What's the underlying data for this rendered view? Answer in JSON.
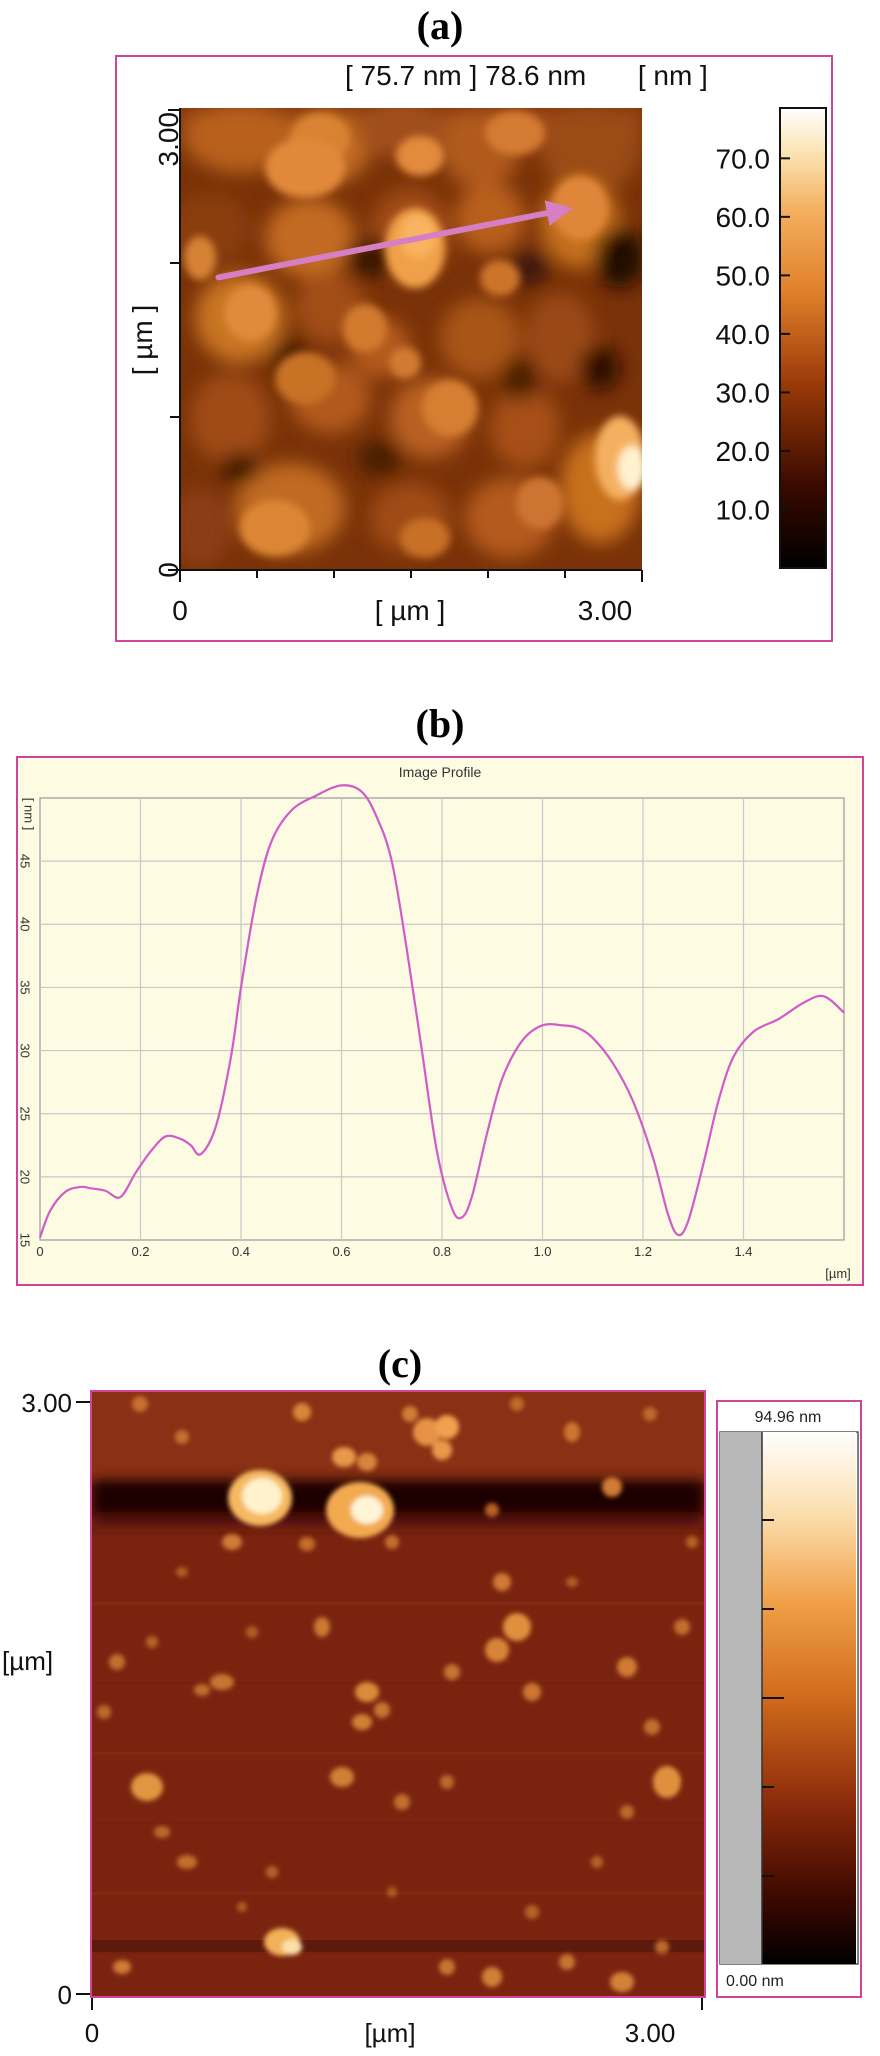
{
  "figure": {
    "panels": [
      {
        "letter": "(a)"
      },
      {
        "letter": "(b)"
      },
      {
        "letter": "(c)"
      }
    ]
  },
  "panel_a": {
    "header": {
      "bracket_value": "[ 75.7 nm ]",
      "value": "78.6 nm",
      "unit": "[ nm ]"
    },
    "x_axis": {
      "start": "0",
      "end": "3.00",
      "label": "[ µm ]"
    },
    "y_axis": {
      "start": "0",
      "end": "3.00",
      "label": "[ µm ]"
    },
    "colorbar": {
      "ticks": [
        "70.0",
        "60.0",
        "50.0",
        "40.0",
        "30.0",
        "20.0",
        "10.0"
      ],
      "tick_values": [
        70,
        60,
        50,
        40,
        30,
        20,
        10
      ],
      "max": 78.6
    },
    "colors": {
      "frame": "#d1449a",
      "arrow": "#d67fc4"
    },
    "profile_line": {
      "from": [
        0.25,
        1.9
      ],
      "to": [
        2.55,
        2.35
      ]
    }
  },
  "panel_b": {
    "title": "Image Profile",
    "colors": {
      "plot_bg": "#fdfbe2",
      "line": "#d05cc8",
      "grid": "#c8c8c8",
      "frame": "#d1449a"
    }
  },
  "panel_c": {
    "x_axis": {
      "start": "0",
      "end": "3.00",
      "label": "[µm]"
    },
    "y_axis": {
      "start": "0",
      "end": "3.00",
      "label": "[µm]"
    },
    "colorbar": {
      "top_label": "94.96 nm",
      "bottom_label": "0.00 nm"
    },
    "colors": {
      "frame": "#d1449a",
      "background": "#7a2410"
    }
  },
  "chart_data": [
    {
      "type": "heatmap",
      "panel": "a",
      "xlim": [
        0,
        3.0
      ],
      "ylim": [
        0,
        3.0
      ],
      "zlim": [
        0,
        78.6
      ],
      "xlabel": "[ µm ]",
      "ylabel": "[ µm ]",
      "colorbar_label": "[ nm ]"
    },
    {
      "type": "line",
      "panel": "b",
      "title": "Image Profile",
      "xlabel": "[µm]",
      "ylabel": "[ nm ]",
      "xlim": [
        0,
        1.6
      ],
      "ylim": [
        15,
        50
      ],
      "x_ticks": [
        "0",
        "0.2",
        "0.4",
        "0.6",
        "0.8",
        "1.0",
        "1.2",
        "1.4"
      ],
      "x_tick_values": [
        0,
        0.2,
        0.4,
        0.6,
        0.8,
        1.0,
        1.2,
        1.4
      ],
      "y_ticks": [
        "15",
        "20",
        "25",
        "30",
        "35",
        "40",
        "45"
      ],
      "y_tick_values": [
        15,
        20,
        25,
        30,
        35,
        40,
        45
      ],
      "grid": true,
      "x": [
        0,
        0.02,
        0.05,
        0.08,
        0.1,
        0.13,
        0.16,
        0.19,
        0.22,
        0.25,
        0.28,
        0.3,
        0.32,
        0.35,
        0.38,
        0.4,
        0.43,
        0.46,
        0.5,
        0.55,
        0.6,
        0.64,
        0.67,
        0.7,
        0.73,
        0.76,
        0.79,
        0.82,
        0.84,
        0.86,
        0.89,
        0.92,
        0.96,
        1.0,
        1.04,
        1.07,
        1.1,
        1.14,
        1.18,
        1.22,
        1.25,
        1.27,
        1.29,
        1.32,
        1.35,
        1.38,
        1.42,
        1.47,
        1.52,
        1.56,
        1.6
      ],
      "y": [
        15.2,
        17.3,
        18.8,
        19.2,
        19.1,
        18.9,
        18.4,
        20.3,
        22.0,
        23.2,
        23.0,
        22.5,
        21.8,
        24.0,
        29.5,
        35.0,
        42.0,
        46.5,
        49.0,
        50.2,
        51.0,
        50.5,
        48.5,
        45.0,
        38.0,
        30.0,
        22.0,
        17.5,
        16.8,
        18.5,
        23.5,
        27.8,
        30.8,
        32.0,
        32.0,
        31.8,
        31.0,
        29.0,
        26.0,
        21.5,
        17.0,
        15.4,
        16.5,
        21.0,
        26.0,
        29.5,
        31.5,
        32.5,
        33.8,
        34.3,
        33.0
      ]
    },
    {
      "type": "heatmap",
      "panel": "c",
      "xlim": [
        0,
        3.0
      ],
      "ylim": [
        0,
        3.0
      ],
      "zlim": [
        0.0,
        94.96
      ],
      "xlabel": "[µm]",
      "ylabel": "[µm]"
    }
  ]
}
